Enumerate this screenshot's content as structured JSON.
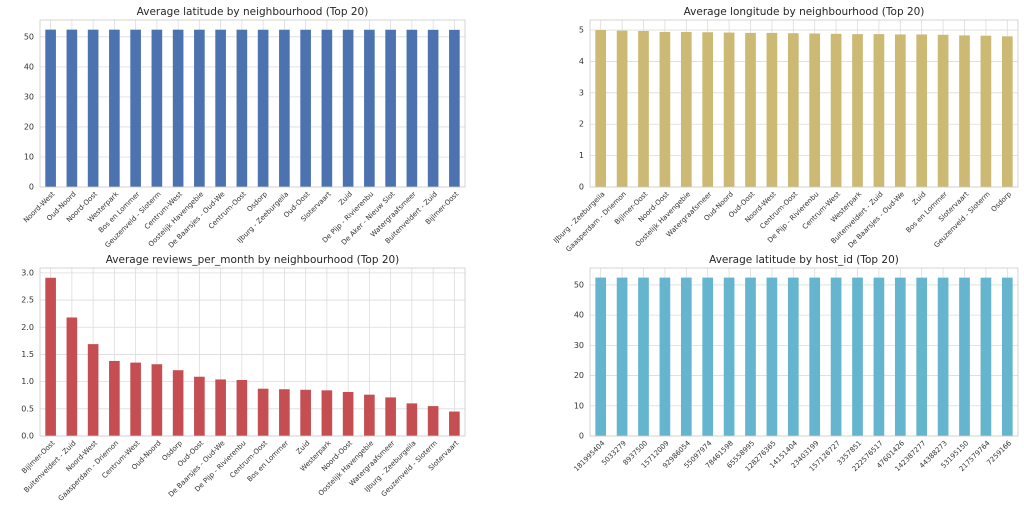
{
  "chart_data": [
    {
      "type": "bar",
      "title": "Average latitude by neighbourhood (Top 20)",
      "color": "#4c72b0",
      "grid": true,
      "categories": [
        "Noord-West",
        "Oud-Noord",
        "Noord-Oost",
        "Westerpark",
        "Bos en Lommer",
        "Geuzenveld - Sloterm",
        "Centrum-West",
        "Oostelijk Havengebie",
        "De Baarsjes - Oud-We",
        "Centrum-Oost",
        "Osdorp",
        "IJburg - Zeeburgeila",
        "Oud-Oost",
        "Slotervaart",
        "Zuid",
        "De Pijp - Rivierenbu",
        "De Aker - Nieuw Slot",
        "Watergraafsmeer",
        "Buitenveldert - Zuid",
        "Bijlmer-Oost"
      ],
      "values": [
        52.39,
        52.39,
        52.38,
        52.38,
        52.38,
        52.38,
        52.38,
        52.37,
        52.37,
        52.37,
        52.36,
        52.36,
        52.36,
        52.36,
        52.35,
        52.35,
        52.35,
        52.35,
        52.33,
        52.32
      ],
      "ylim": [
        0,
        55.6
      ],
      "yticks": [
        0,
        10,
        20,
        30,
        40,
        50
      ]
    },
    {
      "type": "bar",
      "title": "Average longitude by neighbourhood (Top 20)",
      "color": "#ccb974",
      "grid": true,
      "categories": [
        "IJburg - Zeeburgeila",
        "Gaasperdam - Driemon",
        "Bijlmer-Oost",
        "Noord-Oost",
        "Oostelijk Havengebie",
        "Watergraafsmeer",
        "Oud-Noord",
        "Oud-Oost",
        "Noord-West",
        "Centrum-Oost",
        "De Pijp - Rivierenbu",
        "Centrum-West",
        "Westerpark",
        "Buitenveldert - Zuid",
        "De Baarsjes - Oud-We",
        "Zuid",
        "Bos en Lommer",
        "Slotervaart",
        "Geuzenveld - Sloterm",
        "Osdorp"
      ],
      "values": [
        5.0,
        4.98,
        4.97,
        4.94,
        4.94,
        4.93,
        4.92,
        4.91,
        4.91,
        4.9,
        4.89,
        4.88,
        4.87,
        4.87,
        4.86,
        4.86,
        4.85,
        4.83,
        4.82,
        4.8
      ],
      "ylim": [
        0,
        5.32
      ],
      "yticks": [
        0,
        1,
        2,
        3,
        4,
        5
      ]
    },
    {
      "type": "bar",
      "title": "Average reviews_per_month by neighbourhood (Top 20)",
      "color": "#c44e52",
      "grid": true,
      "categories": [
        "Bijlmer-Oost",
        "Buitenveldert - Zuid",
        "Noord-West",
        "Gaasperdam - Driemon",
        "Centrum-West",
        "Oud-Noord",
        "Osdorp",
        "Oud-Oost",
        "De Baarsjes - Oud-We",
        "De Pijp - Rivierenbu",
        "Centrum-Oost",
        "Bos en Lommer",
        "Zuid",
        "Westerpark",
        "Noord-Oost",
        "Oostelijk Havengebie",
        "Watergraafsmeer",
        "IJburg - Zeeburgeila",
        "Geuzenveld - Sloterm",
        "Slotervaart"
      ],
      "values": [
        2.91,
        2.18,
        1.69,
        1.38,
        1.35,
        1.32,
        1.21,
        1.09,
        1.04,
        1.03,
        0.87,
        0.86,
        0.85,
        0.84,
        0.81,
        0.76,
        0.71,
        0.6,
        0.55,
        0.45
      ],
      "ylim": [
        0,
        3.09
      ],
      "yticks": [
        {
          "value": 0,
          "label": "0.0"
        },
        0.5,
        {
          "value": 1,
          "label": "1.0"
        },
        1.5,
        {
          "value": 2,
          "label": "2.0"
        },
        2.5,
        {
          "value": 3,
          "label": "3.0"
        }
      ]
    },
    {
      "type": "bar",
      "title": "Average latitude by host_id (Top 20)",
      "color": "#64b5cd",
      "grid": true,
      "categories": [
        "181995404",
        "5033279",
        "8937500",
        "15712009",
        "92986054",
        "55097974",
        "78461598",
        "65558995",
        "128276365",
        "14151404",
        "23403199",
        "157126727",
        "3357851",
        "222576517",
        "47601426",
        "142387277",
        "44388273",
        "53195150",
        "217579764",
        "7259166"
      ],
      "values": [
        52.43,
        52.42,
        52.42,
        52.42,
        52.42,
        52.42,
        52.42,
        52.42,
        52.42,
        52.42,
        52.42,
        52.42,
        52.42,
        52.41,
        52.41,
        52.41,
        52.41,
        52.41,
        52.41,
        52.41
      ],
      "ylim": [
        0,
        55.6
      ],
      "yticks": [
        0,
        10,
        20,
        30,
        40,
        50
      ]
    }
  ]
}
